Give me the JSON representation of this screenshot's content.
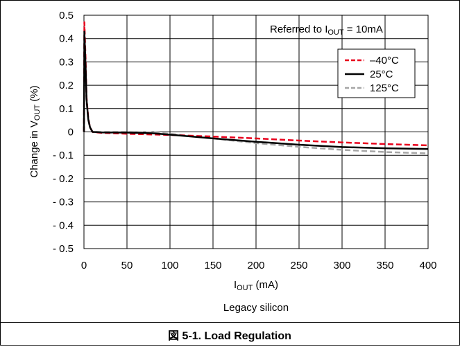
{
  "chart_data": {
    "type": "line",
    "ylabel_main": "Change in V",
    "ylabel_sub": "OUT",
    "ylabel_tail": " (%)",
    "xlabel_main": "I",
    "xlabel_sub": "OUT",
    "xlabel_tail": " (mA)",
    "annotation_main": "Referred to I",
    "annotation_sub": "OUT",
    "annotation_tail": " = 10mA",
    "subtitle": "Legacy silicon",
    "caption": "図 5-1. Load Regulation",
    "xlim": [
      0,
      400
    ],
    "ylim": [
      -0.5,
      0.5
    ],
    "x_ticks": [
      0,
      50,
      100,
      150,
      200,
      250,
      300,
      350,
      400
    ],
    "x_tick_labels": [
      "0",
      "50",
      "100",
      "150",
      "200",
      "250",
      "300",
      "350",
      "400"
    ],
    "y_ticks": [
      0.5,
      0.4,
      0.3,
      0.2,
      0.1,
      0,
      -0.1,
      -0.2,
      -0.3,
      -0.4,
      -0.5
    ],
    "y_tick_labels": [
      "0.5",
      "0.4",
      "0.3",
      "0.2",
      "0.1",
      "0",
      "- 0.1",
      "- 0.2",
      "- 0.3",
      "- 0.4",
      "- 0.5"
    ],
    "grid": true,
    "legend_position": "top-right",
    "series": [
      {
        "name": "–40°C",
        "color": "#e8001c",
        "dash": "dashed",
        "x": [
          0,
          0.5,
          1,
          2,
          3,
          5,
          7,
          10,
          15,
          20,
          50,
          100,
          150,
          200,
          250,
          300,
          350,
          400
        ],
        "y": [
          0.0,
          0.47,
          0.42,
          0.3,
          0.15,
          0.06,
          0.02,
          0.0,
          -0.002,
          -0.004,
          -0.008,
          -0.013,
          -0.02,
          -0.028,
          -0.037,
          -0.045,
          -0.052,
          -0.058
        ]
      },
      {
        "name": "25°C",
        "color": "#000000",
        "dash": "solid",
        "x": [
          0,
          0.5,
          1,
          2,
          3,
          5,
          7,
          10,
          15,
          20,
          50,
          80,
          100,
          150,
          200,
          250,
          300,
          350,
          400
        ],
        "y": [
          0.0,
          0.43,
          0.38,
          0.27,
          0.14,
          0.055,
          0.02,
          0.0,
          -0.001,
          -0.002,
          -0.003,
          -0.006,
          -0.012,
          -0.028,
          -0.042,
          -0.055,
          -0.065,
          -0.07,
          -0.073
        ]
      },
      {
        "name": "125°C",
        "color": "#a6a6a6",
        "dash": "dashed",
        "x": [
          0,
          0.5,
          1,
          2,
          3,
          5,
          7,
          10,
          15,
          20,
          50,
          80,
          100,
          150,
          200,
          250,
          300,
          350,
          400
        ],
        "y": [
          0.0,
          0.4,
          0.35,
          0.25,
          0.13,
          0.05,
          0.018,
          0.0,
          0.0,
          0.0,
          0.0,
          -0.002,
          -0.008,
          -0.028,
          -0.048,
          -0.064,
          -0.077,
          -0.086,
          -0.092
        ]
      }
    ]
  }
}
